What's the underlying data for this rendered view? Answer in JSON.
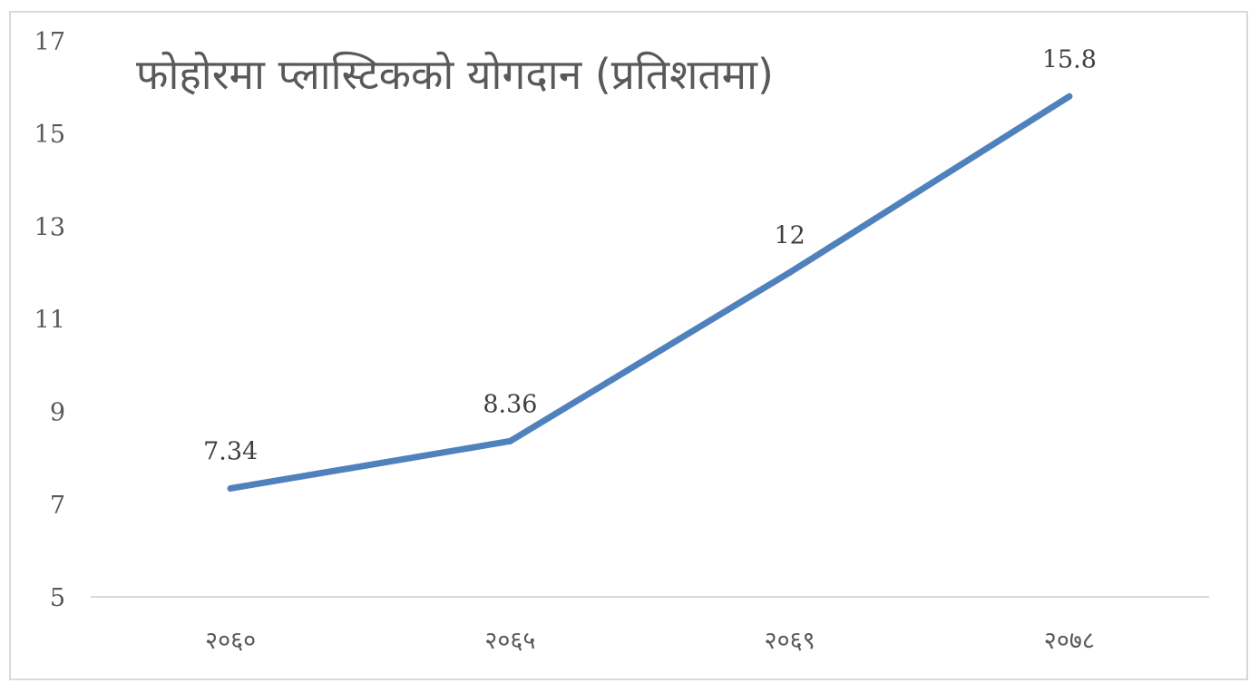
{
  "chart_data": {
    "type": "line",
    "title": "फोहोरमा प्लास्टिकको योगदान (प्रतिशतमा)",
    "xlabel": "",
    "ylabel": "",
    "categories": [
      "२०६०",
      "२०६५",
      "२०६९",
      "२०७८"
    ],
    "series": [
      {
        "values": [
          7.34,
          8.36,
          12,
          15.8
        ],
        "data_labels": [
          "7.34",
          "8.36",
          "12",
          "15.8"
        ],
        "color": "#4f81bd"
      }
    ],
    "ylim": [
      5,
      17
    ],
    "yticks": [
      5,
      7,
      9,
      11,
      13,
      15,
      17
    ],
    "ytick_labels": [
      "5",
      "7",
      "9",
      "11",
      "13",
      "15",
      "17"
    ],
    "grid": false,
    "legend": "none"
  }
}
